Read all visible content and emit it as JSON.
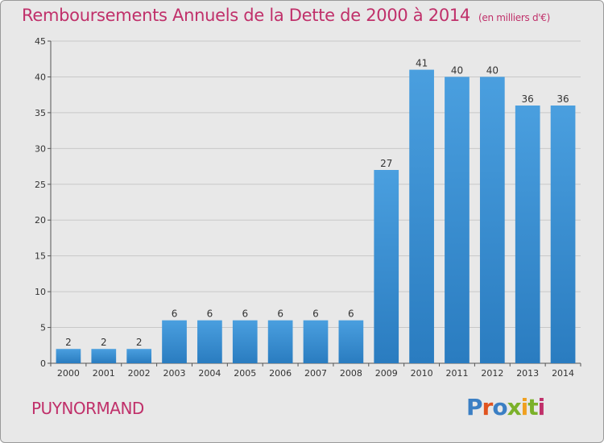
{
  "chart_data": {
    "type": "bar",
    "title": "Remboursements Annuels de la Dette de 2000 à 2014",
    "unit_note": "(en milliers d'€)",
    "categories": [
      "2000",
      "2001",
      "2002",
      "2003",
      "2004",
      "2005",
      "2006",
      "2007",
      "2008",
      "2009",
      "2010",
      "2011",
      "2012",
      "2013",
      "2014"
    ],
    "values": [
      2,
      2,
      2,
      6,
      6,
      6,
      6,
      6,
      6,
      27,
      41,
      40,
      40,
      36,
      36
    ],
    "ylim": [
      0,
      45
    ],
    "yticks": [
      0,
      5,
      10,
      15,
      20,
      25,
      30,
      35,
      40,
      45
    ],
    "grid": true,
    "bar_color": "#4a9fdf",
    "bar_color_dark": "#2a7cc0"
  },
  "footer": {
    "commune": "PUYNORMAND",
    "logo_text": "Proxiti",
    "logo_colors": [
      "#3b7fc4",
      "#e0531f",
      "#3b7fc4",
      "#7bb12a",
      "#f0a020",
      "#7bb12a",
      "#c0306a"
    ]
  },
  "colors": {
    "accent": "#c0306a"
  }
}
